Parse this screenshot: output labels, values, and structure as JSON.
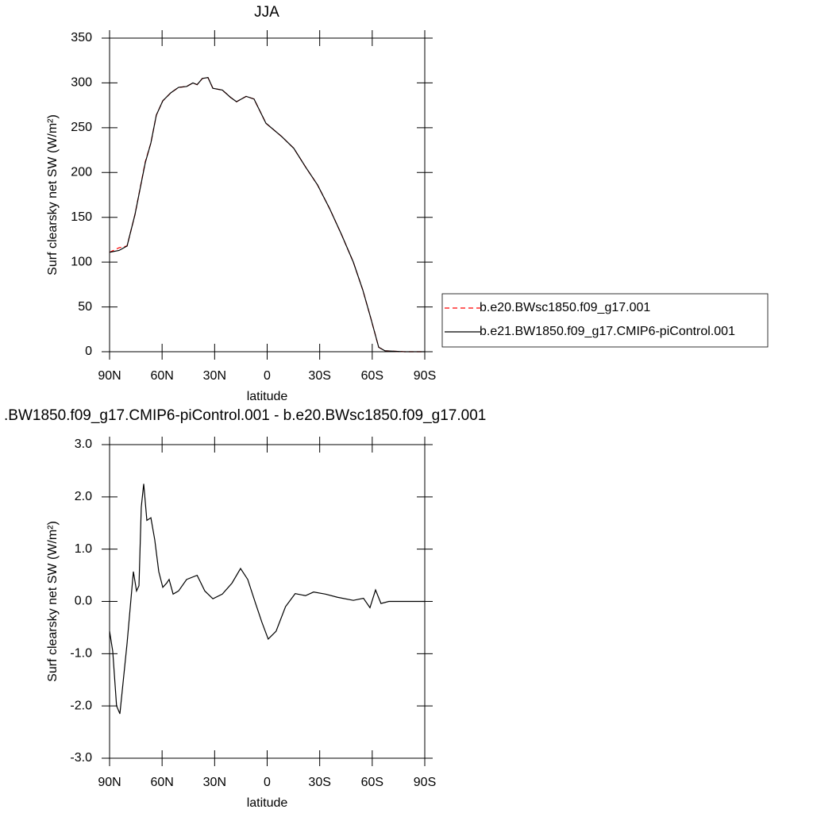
{
  "chart_data": [
    {
      "type": "line",
      "title": "JJA",
      "x_label": "latitude",
      "y_label": "Surf clearsky net SW (W/m²)",
      "xlim": [
        90,
        -90
      ],
      "xticks": [
        {
          "value": 90,
          "label": "90N"
        },
        {
          "value": 60,
          "label": "60N"
        },
        {
          "value": 30,
          "label": "30N"
        },
        0,
        {
          "value": -30,
          "label": "30S"
        },
        {
          "value": -60,
          "label": "60S"
        },
        {
          "value": -90,
          "label": "90S"
        }
      ],
      "ylim": [
        0,
        350
      ],
      "yticks": [
        0,
        50,
        100,
        150,
        200,
        250,
        300,
        350
      ],
      "legend": "outside right",
      "x": [
        90,
        84.6,
        80,
        75.5,
        69.6,
        66.4,
        63.3,
        59.6,
        55,
        50.6,
        46,
        42.4,
        40,
        37,
        33.8,
        31,
        25.6,
        21,
        17.5,
        12,
        7.5,
        0.7,
        -8.4,
        -15.2,
        -22,
        -28.8,
        -35.6,
        -42.4,
        -49.2,
        -54.6,
        -59.1,
        -63.7,
        -67.3,
        -78.6,
        -90
      ],
      "series": [
        {
          "name": "b.e20.BWsc1850.f09_g17.001",
          "color": "#ff0000",
          "line_style": "dashed",
          "values": [
            111,
            116,
            118,
            153,
            212,
            233,
            264,
            280,
            289,
            295,
            296,
            300,
            298,
            305,
            306,
            294,
            292,
            284,
            279,
            285,
            282,
            255,
            240,
            227,
            206,
            186,
            160,
            131,
            100,
            69,
            38,
            5,
            1,
            0,
            0
          ]
        },
        {
          "name": "b.e21.BW1850.f09_g17.CMIP6-piControl.001",
          "color": "#000000",
          "line_style": "solid",
          "values": [
            111,
            113,
            118,
            153,
            211,
            233,
            264,
            280,
            289,
            295,
            296,
            300,
            298,
            305,
            306,
            294,
            292,
            284,
            279,
            285,
            282,
            255,
            240,
            227,
            206,
            186,
            160,
            131,
            100,
            69,
            38,
            5,
            1,
            0,
            0
          ]
        }
      ]
    },
    {
      "type": "line",
      "title": ".BW1850.f09_g17.CMIP6-piControl.001 - b.e20.BWsc1850.f09_g17.001",
      "x_label": "latitude",
      "y_label": "Surf clearsky net SW (W/m²)",
      "xlim": [
        90,
        -90
      ],
      "xticks": [
        {
          "value": 90,
          "label": "90N"
        },
        {
          "value": 60,
          "label": "60N"
        },
        {
          "value": 30,
          "label": "30N"
        },
        0,
        {
          "value": -30,
          "label": "30S"
        },
        {
          "value": -60,
          "label": "60S"
        },
        {
          "value": -90,
          "label": "90S"
        }
      ],
      "ylim": [
        -3,
        3
      ],
      "yticks": [
        {
          "value": -3,
          "label": "-3.0"
        },
        {
          "value": -2,
          "label": "-2.0"
        },
        {
          "value": -1,
          "label": "-1.0"
        },
        {
          "value": 0,
          "label": "0.0"
        },
        {
          "value": 1,
          "label": "1.0"
        },
        {
          "value": 2,
          "label": "2.0"
        },
        {
          "value": 3,
          "label": "3.0"
        }
      ],
      "x": [
        90,
        88.2,
        86,
        84.1,
        80,
        76.4,
        74.6,
        73.2,
        71.9,
        70.5,
        68.7,
        66.4,
        64.2,
        61.9,
        59.6,
        57.4,
        56,
        53.7,
        50.6,
        46,
        40,
        35.6,
        31,
        25.6,
        20.1,
        15.2,
        11.1,
        6.6,
        3,
        -0.6,
        -5.1,
        -10.5,
        -16,
        -21.9,
        -26.5,
        -33.3,
        -40.1,
        -49.2,
        -55,
        -58.7,
        -61.9,
        -65,
        -69.5,
        -90
      ],
      "series": [
        {
          "color": "#000000",
          "line_style": "solid",
          "values": [
            -0.57,
            -0.95,
            -2.0,
            -2.15,
            -0.8,
            0.57,
            0.2,
            0.3,
            1.8,
            2.25,
            1.55,
            1.6,
            1.18,
            0.57,
            0.27,
            0.35,
            0.42,
            0.14,
            0.2,
            0.42,
            0.5,
            0.2,
            0.05,
            0.14,
            0.35,
            0.63,
            0.42,
            -0.04,
            -0.4,
            -0.72,
            -0.57,
            -0.1,
            0.15,
            0.11,
            0.18,
            0.14,
            0.08,
            0.02,
            0.06,
            -0.12,
            0.22,
            -0.04,
            0,
            0
          ]
        }
      ]
    }
  ]
}
